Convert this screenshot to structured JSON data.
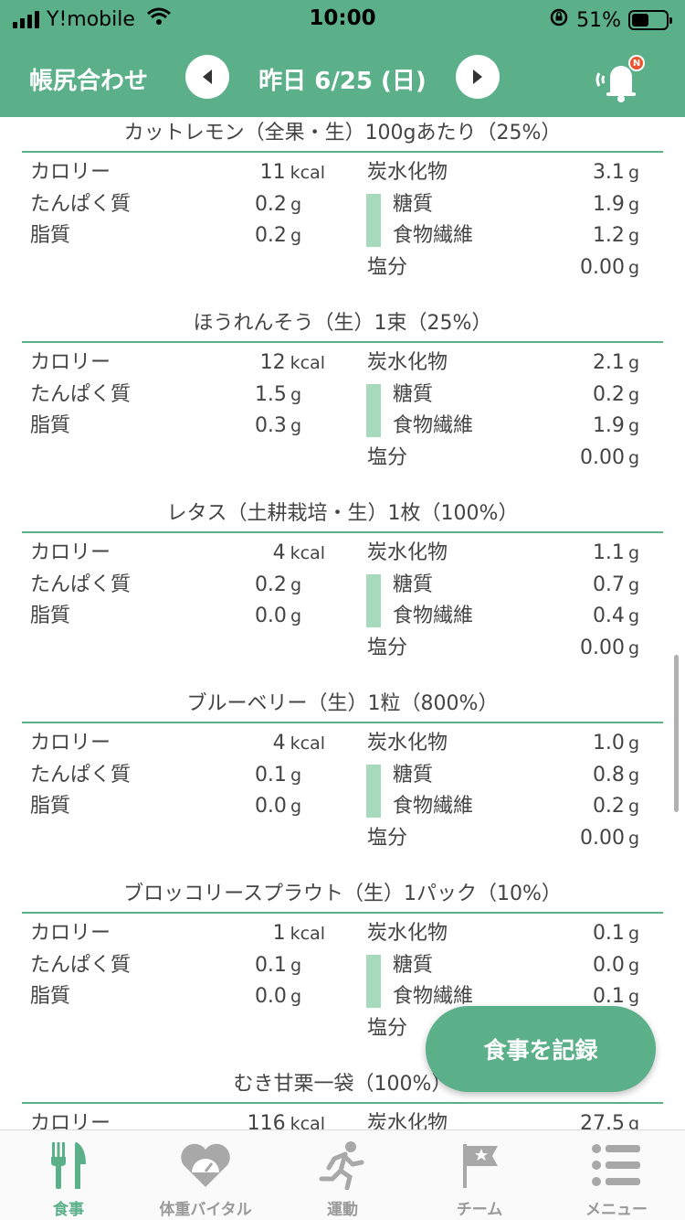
{
  "status": {
    "carrier": "Y!mobile",
    "time": "10:00",
    "battery": "51%",
    "battery_level": 0.51
  },
  "header": {
    "app_title": "帳尻合わせ",
    "date_label": "昨日 6/25 (日)",
    "notification_badge": "N"
  },
  "labels": {
    "calorie": "カロリー",
    "protein": "たんぱく質",
    "fat": "脂質",
    "carbs": "炭水化物",
    "sugar": "糖質",
    "fiber": "食物繊維",
    "salt": "塩分",
    "unit_kcal": "kcal",
    "unit_g": "g"
  },
  "foods": [
    {
      "name": "カットレモン（全果・生）100gあたり（25%）",
      "calorie": "11",
      "protein": "0.2",
      "fat": "0.2",
      "carbs": "3.1",
      "sugar": "1.9",
      "fiber": "1.2",
      "salt": "0.00"
    },
    {
      "name": "ほうれんそう（生）1束（25%）",
      "calorie": "12",
      "protein": "1.5",
      "fat": "0.3",
      "carbs": "2.1",
      "sugar": "0.2",
      "fiber": "1.9",
      "salt": "0.00"
    },
    {
      "name": "レタス（土耕栽培・生）1枚（100%）",
      "calorie": "4",
      "protein": "0.2",
      "fat": "0.0",
      "carbs": "1.1",
      "sugar": "0.7",
      "fiber": "0.4",
      "salt": "0.00"
    },
    {
      "name": "ブルーベリー（生）1粒（800%）",
      "calorie": "4",
      "protein": "0.1",
      "fat": "0.0",
      "carbs": "1.0",
      "sugar": "0.8",
      "fiber": "0.2",
      "salt": "0.00"
    },
    {
      "name": "ブロッコリースプラウト（生）1パック（10%）",
      "calorie": "1",
      "protein": "0.1",
      "fat": "0.0",
      "carbs": "0.1",
      "sugar": "0.0",
      "fiber": "0.1",
      "salt": ""
    },
    {
      "name": "むき甘栗一袋（100%）",
      "calorie": "116",
      "protein": "",
      "fat": "",
      "carbs": "27.5",
      "sugar": "",
      "fiber": "",
      "salt": ""
    }
  ],
  "fab_label": "食事を記録",
  "tabs": [
    {
      "label": "食事",
      "icon": "fork-knife-icon",
      "active": true
    },
    {
      "label": "体重バイタル",
      "icon": "heart-scale-icon",
      "active": false
    },
    {
      "label": "運動",
      "icon": "running-icon",
      "active": false
    },
    {
      "label": "チーム",
      "icon": "flag-star-icon",
      "active": false
    },
    {
      "label": "メニュー",
      "icon": "list-menu-icon",
      "active": false
    }
  ],
  "colors": {
    "brand": "#5bb08a",
    "bar": "#a7d9bd",
    "badge": "#e8542e"
  }
}
